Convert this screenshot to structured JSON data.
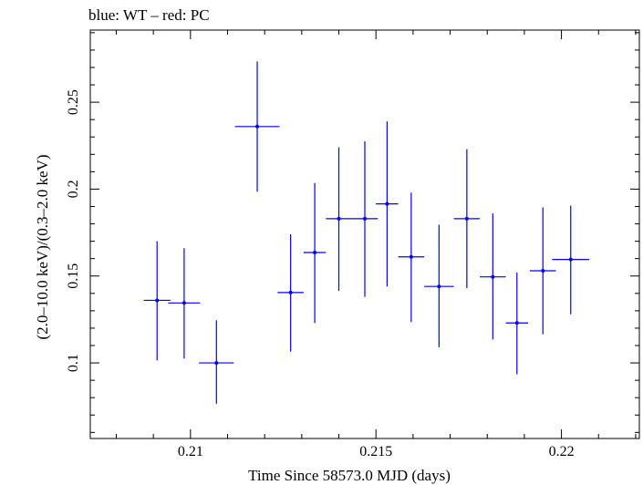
{
  "chart_data": {
    "type": "scatter",
    "title": "blue: WT – red: PC",
    "xlabel": "Time Since 58573.0 MJD (days)",
    "ylabel": "(2.0–10.0 keV)/(0.3–2.0 keV)",
    "xlim": [
      0.2073,
      0.2221
    ],
    "ylim": [
      0.0565,
      0.2915
    ],
    "x_ticks": [
      {
        "value": 0.21,
        "label": "0.21"
      },
      {
        "value": 0.215,
        "label": "0.215"
      },
      {
        "value": 0.22,
        "label": "0.22"
      }
    ],
    "y_ticks": [
      {
        "value": 0.1,
        "label": "0.1"
      },
      {
        "value": 0.15,
        "label": "0.15"
      },
      {
        "value": 0.2,
        "label": "0.2"
      },
      {
        "value": 0.25,
        "label": "0.25"
      }
    ],
    "grid": false,
    "series": [
      {
        "color": "#0000ff",
        "points": [
          {
            "x": 0.2091,
            "xerr": 0.00036,
            "y": 0.136,
            "ylo": 0.1015,
            "yhi": 0.17
          },
          {
            "x": 0.20983,
            "xerr": 0.00043,
            "y": 0.1345,
            "ylo": 0.1025,
            "yhi": 0.166
          },
          {
            "x": 0.2107,
            "xerr": 0.00047,
            "y": 0.1,
            "ylo": 0.0765,
            "yhi": 0.1245
          },
          {
            "x": 0.2118,
            "xerr": 0.0006,
            "y": 0.236,
            "ylo": 0.1985,
            "yhi": 0.2735
          },
          {
            "x": 0.2127,
            "xerr": 0.00035,
            "y": 0.1405,
            "ylo": 0.1065,
            "yhi": 0.174
          },
          {
            "x": 0.21335,
            "xerr": 0.0003,
            "y": 0.1635,
            "ylo": 0.123,
            "yhi": 0.2035
          },
          {
            "x": 0.214,
            "xerr": 0.00035,
            "y": 0.183,
            "ylo": 0.1415,
            "yhi": 0.224
          },
          {
            "x": 0.2147,
            "xerr": 0.00035,
            "y": 0.183,
            "ylo": 0.138,
            "yhi": 0.2275
          },
          {
            "x": 0.2153,
            "xerr": 0.0003,
            "y": 0.1915,
            "ylo": 0.144,
            "yhi": 0.239
          },
          {
            "x": 0.21595,
            "xerr": 0.00035,
            "y": 0.161,
            "ylo": 0.1235,
            "yhi": 0.198
          },
          {
            "x": 0.2167,
            "xerr": 0.0004,
            "y": 0.144,
            "ylo": 0.109,
            "yhi": 0.1795
          },
          {
            "x": 0.21745,
            "xerr": 0.00035,
            "y": 0.183,
            "ylo": 0.143,
            "yhi": 0.223
          },
          {
            "x": 0.21815,
            "xerr": 0.00035,
            "y": 0.1495,
            "ylo": 0.1135,
            "yhi": 0.186
          },
          {
            "x": 0.2188,
            "xerr": 0.0003,
            "y": 0.123,
            "ylo": 0.0935,
            "yhi": 0.152
          },
          {
            "x": 0.2195,
            "xerr": 0.00035,
            "y": 0.153,
            "ylo": 0.1165,
            "yhi": 0.1895
          },
          {
            "x": 0.22025,
            "xerr": 0.0005,
            "y": 0.1595,
            "ylo": 0.128,
            "yhi": 0.1905
          }
        ]
      }
    ]
  }
}
